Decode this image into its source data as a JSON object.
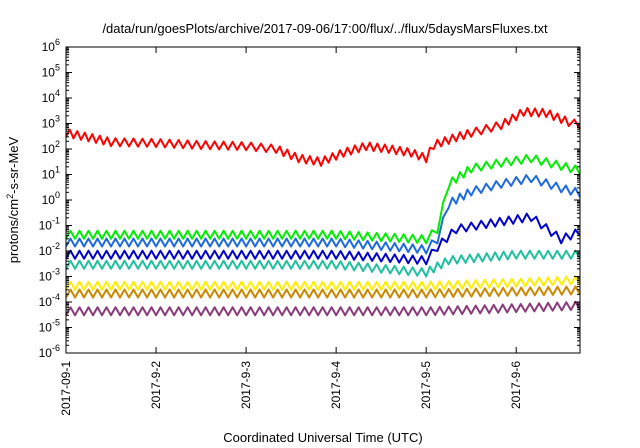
{
  "chart_data": {
    "type": "line",
    "title": "/data/run/goesPlots/archive/2017-09-06/17:00/flux/../flux/5daysMarsFluxes.txt",
    "xlabel": "Coordinated Universal Time (UTC)",
    "ylabel": "protons/cm²-s-sr-MeV",
    "ylabel_parts": {
      "before": "protons/cm",
      "sup": "2",
      "after": "-s-sr-MeV"
    },
    "y_scale": "log",
    "ylim": [
      1e-06,
      1000000.0
    ],
    "y_ticks": [
      {
        "value": 1000000.0,
        "base": "10",
        "exp": "6"
      },
      {
        "value": 100000.0,
        "base": "10",
        "exp": "5"
      },
      {
        "value": 10000.0,
        "base": "10",
        "exp": "4"
      },
      {
        "value": 1000.0,
        "base": "10",
        "exp": "3"
      },
      {
        "value": 100.0,
        "base": "10",
        "exp": "2"
      },
      {
        "value": 10.0,
        "base": "10",
        "exp": "1"
      },
      {
        "value": 1.0,
        "base": "10",
        "exp": "0"
      },
      {
        "value": 0.1,
        "base": "10",
        "exp": "-1"
      },
      {
        "value": 0.01,
        "base": "10",
        "exp": "-2"
      },
      {
        "value": 0.001,
        "base": "10",
        "exp": "-3"
      },
      {
        "value": 0.0001,
        "base": "10",
        "exp": "-4"
      },
      {
        "value": 1e-05,
        "base": "10",
        "exp": "-5"
      },
      {
        "value": 1e-06,
        "base": "10",
        "exp": "-6"
      }
    ],
    "x_ticks": [
      "2017-09-1",
      "2017-9-2",
      "2017-9-3",
      "2017-9-4",
      "2017-9-5",
      "2017-9-6"
    ],
    "xlim": [
      "2017-09-01 00:00",
      "2017-09-06 17:00"
    ],
    "grid": false,
    "legend": "none",
    "series": [
      {
        "color": "#ff0000",
        "points": [
          [
            "2017-09-01 00:00",
            300
          ],
          [
            "2017-09-01 06:00",
            200
          ],
          [
            "2017-09-01 12:00",
            130
          ],
          [
            "2017-09-02 00:00",
            120
          ],
          [
            "2017-09-02 12:00",
            100
          ],
          [
            "2017-09-03 00:00",
            90
          ],
          [
            "2017-09-03 08:00",
            70
          ],
          [
            "2017-09-03 14:00",
            30
          ],
          [
            "2017-09-03 20:00",
            22
          ],
          [
            "2017-09-04 02:00",
            50
          ],
          [
            "2017-09-04 08:00",
            90
          ],
          [
            "2017-09-04 14:00",
            70
          ],
          [
            "2017-09-04 20:00",
            50
          ],
          [
            "2017-09-05 00:00",
            30
          ],
          [
            "2017-09-05 02:00",
            100
          ],
          [
            "2017-09-05 08:00",
            200
          ],
          [
            "2017-09-05 12:00",
            300
          ],
          [
            "2017-09-05 20:00",
            600
          ],
          [
            "2017-09-06 02:00",
            2000
          ],
          [
            "2017-09-06 08:00",
            1800
          ],
          [
            "2017-09-06 14:00",
            800
          ],
          [
            "2017-09-06 17:00",
            600
          ]
        ]
      },
      {
        "color": "#00ee00",
        "points": [
          [
            "2017-09-01 00:00",
            0.03
          ],
          [
            "2017-09-02 00:00",
            0.03
          ],
          [
            "2017-09-03 00:00",
            0.03
          ],
          [
            "2017-09-04 00:00",
            0.03
          ],
          [
            "2017-09-05 00:00",
            0.02
          ],
          [
            "2017-09-05 03:00",
            0.05
          ],
          [
            "2017-09-05 06:00",
            3
          ],
          [
            "2017-09-05 12:00",
            12
          ],
          [
            "2017-09-05 20:00",
            20
          ],
          [
            "2017-09-06 04:00",
            30
          ],
          [
            "2017-09-06 12:00",
            15
          ],
          [
            "2017-09-06 17:00",
            10
          ]
        ]
      },
      {
        "color": "#1e6be0",
        "points": [
          [
            "2017-09-01 00:00",
            0.015
          ],
          [
            "2017-09-02 00:00",
            0.015
          ],
          [
            "2017-09-03 00:00",
            0.015
          ],
          [
            "2017-09-04 00:00",
            0.015
          ],
          [
            "2017-09-05 00:00",
            0.008
          ],
          [
            "2017-09-05 03:00",
            0.02
          ],
          [
            "2017-09-05 06:00",
            0.5
          ],
          [
            "2017-09-05 12:00",
            1.5
          ],
          [
            "2017-09-05 20:00",
            3
          ],
          [
            "2017-09-06 04:00",
            5
          ],
          [
            "2017-09-06 12:00",
            2
          ],
          [
            "2017-09-06 17:00",
            1.3
          ]
        ]
      },
      {
        "color": "#0000cc",
        "points": [
          [
            "2017-09-01 00:00",
            0.005
          ],
          [
            "2017-09-02 00:00",
            0.005
          ],
          [
            "2017-09-03 00:00",
            0.005
          ],
          [
            "2017-09-04 00:00",
            0.005
          ],
          [
            "2017-09-05 00:00",
            0.003
          ],
          [
            "2017-09-05 03:00",
            0.01
          ],
          [
            "2017-09-05 08:00",
            0.05
          ],
          [
            "2017-09-05 16:00",
            0.08
          ],
          [
            "2017-09-06 04:00",
            0.15
          ],
          [
            "2017-09-06 12:00",
            0.02
          ],
          [
            "2017-09-06 17:00",
            0.04
          ]
        ]
      },
      {
        "color": "#20c0a0",
        "points": [
          [
            "2017-09-01 00:00",
            0.002
          ],
          [
            "2017-09-02 00:00",
            0.002
          ],
          [
            "2017-09-03 00:00",
            0.002
          ],
          [
            "2017-09-04 00:00",
            0.002
          ],
          [
            "2017-09-05 00:00",
            0.001
          ],
          [
            "2017-09-05 06:00",
            0.003
          ],
          [
            "2017-09-06 00:00",
            0.005
          ],
          [
            "2017-09-06 17:00",
            0.005
          ]
        ]
      },
      {
        "color": "#ffee00",
        "points": [
          [
            "2017-09-01 00:00",
            0.0003
          ],
          [
            "2017-09-02 00:00",
            0.0003
          ],
          [
            "2017-09-03 00:00",
            0.0003
          ],
          [
            "2017-09-04 00:00",
            0.0003
          ],
          [
            "2017-09-05 00:00",
            0.0003
          ],
          [
            "2017-09-06 00:00",
            0.0004
          ],
          [
            "2017-09-06 17:00",
            0.0005
          ]
        ]
      },
      {
        "color": "#cc8800",
        "points": [
          [
            "2017-09-01 00:00",
            0.00015
          ],
          [
            "2017-09-03 00:00",
            0.00015
          ],
          [
            "2017-09-05 00:00",
            0.00015
          ],
          [
            "2017-09-06 17:00",
            0.0002
          ]
        ]
      },
      {
        "color": "#8b3a7a",
        "points": [
          [
            "2017-09-01 00:00",
            3e-05
          ],
          [
            "2017-09-02 00:00",
            3e-05
          ],
          [
            "2017-09-03 00:00",
            3e-05
          ],
          [
            "2017-09-04 00:00",
            3e-05
          ],
          [
            "2017-09-05 00:00",
            3e-05
          ],
          [
            "2017-09-06 00:00",
            4e-05
          ],
          [
            "2017-09-06 17:00",
            5e-05
          ]
        ]
      }
    ]
  }
}
